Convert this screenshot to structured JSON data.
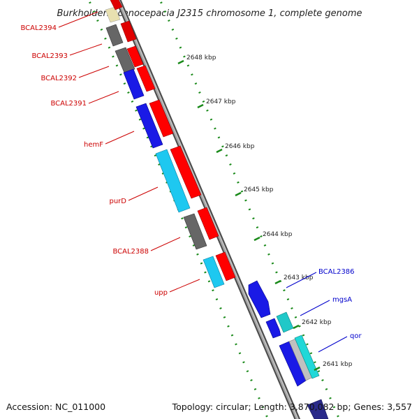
{
  "title": "Burkholderia cenocepacia J2315 chromosome 1, complete genome",
  "footer": {
    "accession": "Accession: NC_011000",
    "topology": "Topology: circular; Length: 3,870,082 bp; Genes: 3,557"
  },
  "scale": {
    "ticks": [
      {
        "label": "2648 kbp"
      },
      {
        "label": "2647 kbp"
      },
      {
        "label": "2646 kbp"
      },
      {
        "label": "2645 kbp"
      },
      {
        "label": "2644 kbp"
      },
      {
        "label": "2643 kbp"
      },
      {
        "label": "2642 kbp"
      },
      {
        "label": "2641 kbp"
      }
    ]
  },
  "genes": [
    {
      "name": "BCAL2394",
      "color": "#cc0000"
    },
    {
      "name": "BCAL2393",
      "color": "#cc0000"
    },
    {
      "name": "BCAL2392",
      "color": "#cc0000"
    },
    {
      "name": "BCAL2391",
      "color": "#cc0000"
    },
    {
      "name": "hemF",
      "color": "#cc0000"
    },
    {
      "name": "purD",
      "color": "#cc0000"
    },
    {
      "name": "BCAL2388",
      "color": "#cc0000"
    },
    {
      "name": "upp",
      "color": "#cc0000"
    },
    {
      "name": "BCAL2386",
      "color": "#0000cc"
    },
    {
      "name": "mgsA",
      "color": "#0000cc"
    },
    {
      "name": "qor",
      "color": "#0000cc"
    }
  ],
  "colors": {
    "forward_strand": "#ff0000",
    "reverse_strand_blue": "#1a1ae6",
    "reverse_strand_cyan": "#1ec8f0",
    "grey_feature": "#666666",
    "backbone": "#8c8c8c",
    "tick_marks": "#1a8a1a"
  }
}
